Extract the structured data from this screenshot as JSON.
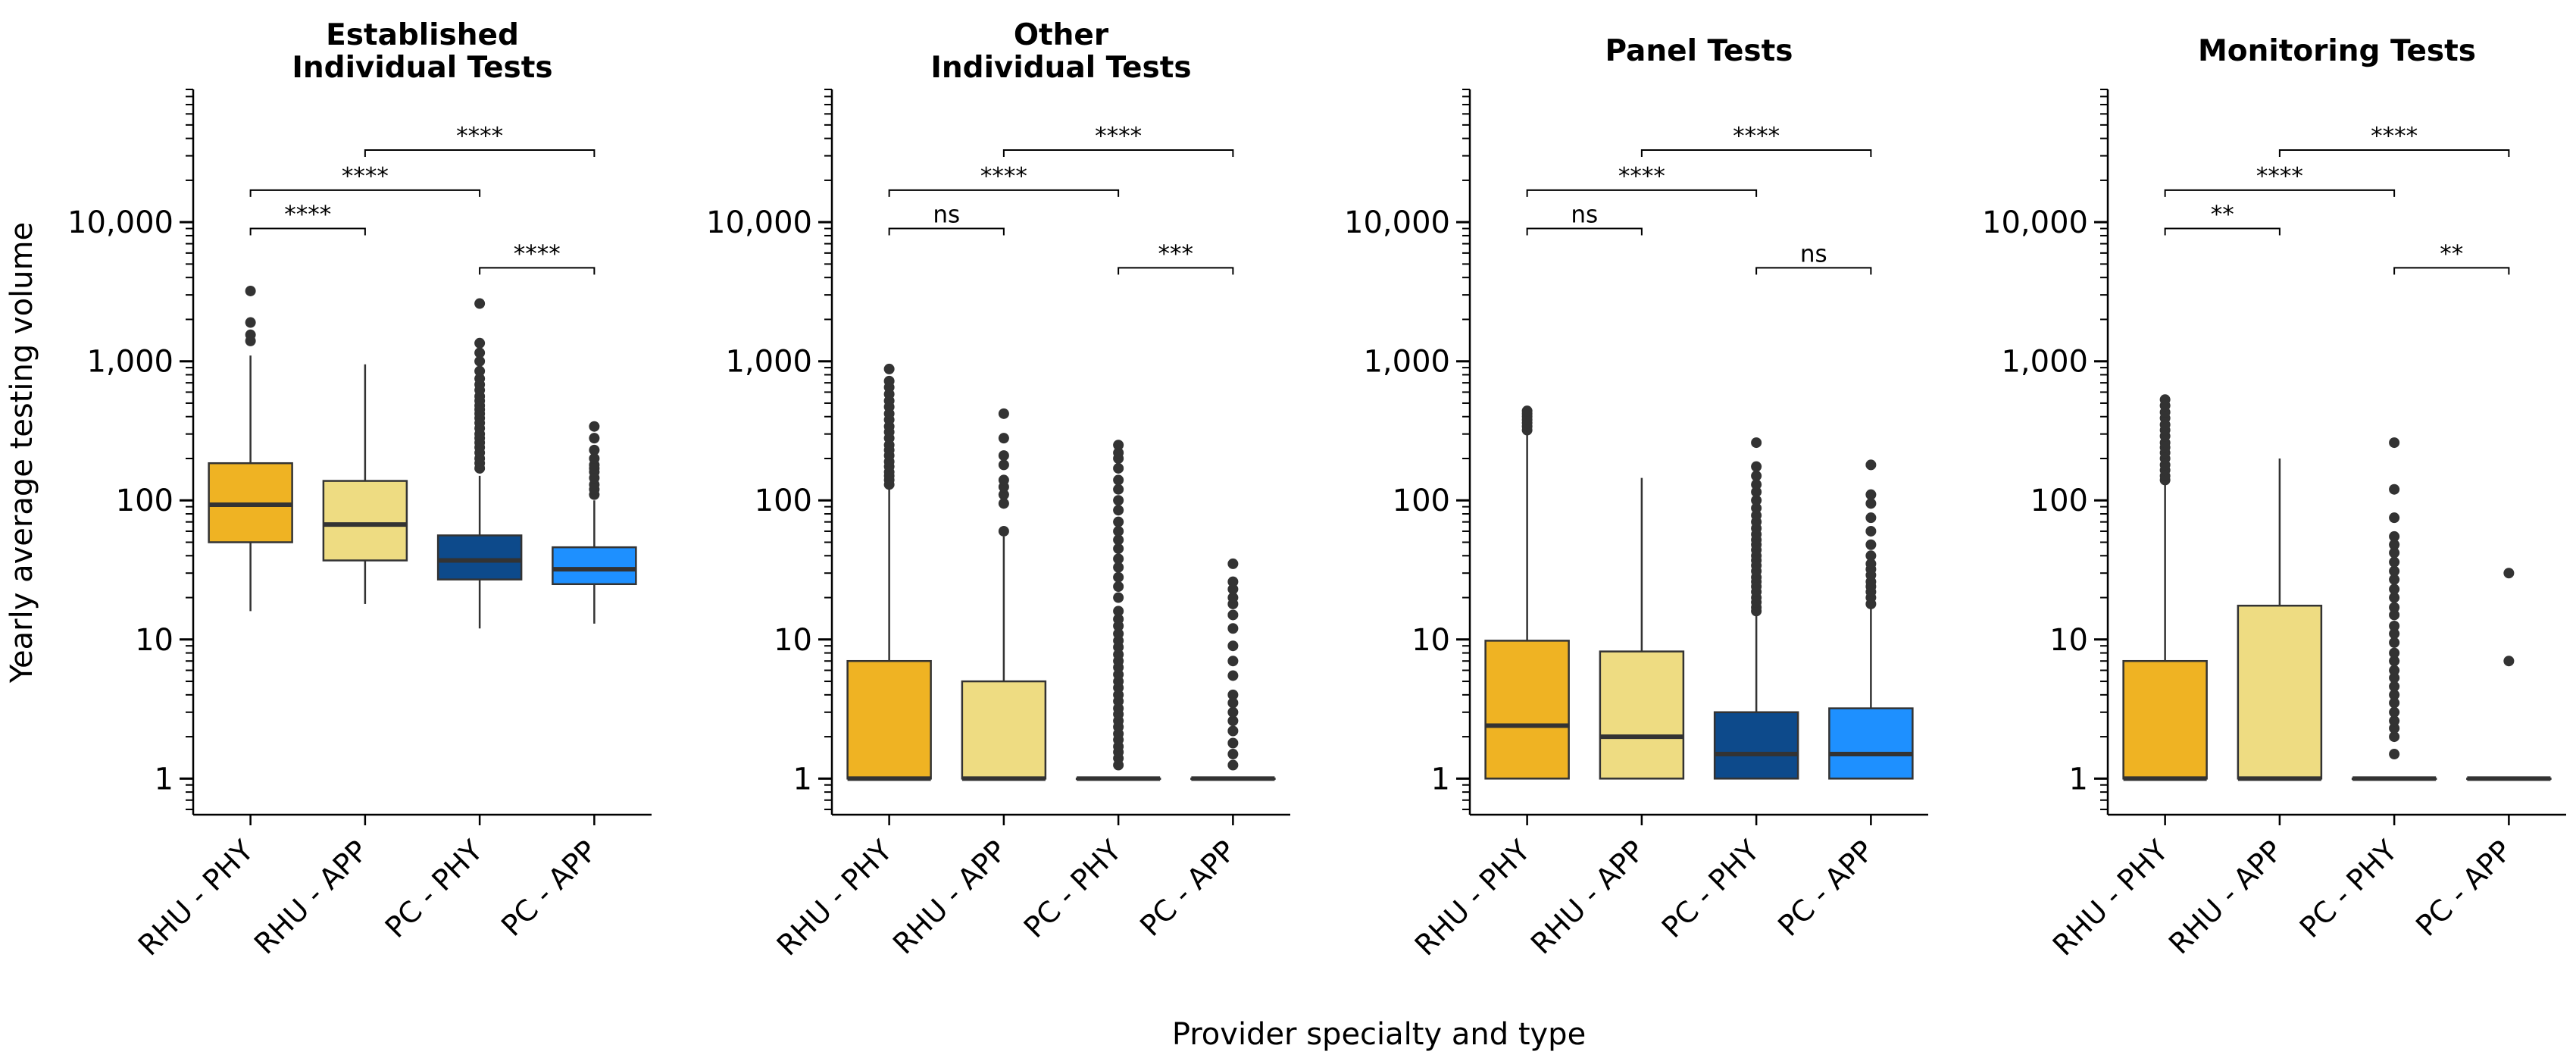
{
  "figure": {
    "ylabel": "Yearly average testing volume",
    "xlabel": "Provider specialty and type"
  },
  "chart_data": [
    {
      "type": "box",
      "title_lines": [
        "Established",
        "Individual Tests"
      ],
      "categories": [
        "RHU - PHY",
        "RHU - APP",
        "PC - PHY",
        "PC - APP"
      ],
      "yscale": "log",
      "ylim": [
        0.55,
        90000
      ],
      "yticks": [
        1,
        10,
        100,
        1000,
        10000
      ],
      "ytick_labels": [
        "1",
        "10",
        "100",
        "1,000",
        "10,000"
      ],
      "colors": [
        "#EFB323",
        "#EEDC82",
        "#0D4A8B",
        "#1E90FF"
      ],
      "boxes": [
        {
          "q1": 50,
          "median": 93,
          "q3": 185,
          "whislo": 16,
          "whishi": 1100,
          "fliers": [
            1400,
            1550,
            1900,
            3200
          ]
        },
        {
          "q1": 37,
          "median": 67,
          "q3": 138,
          "whislo": 18,
          "whishi": 950,
          "fliers": []
        },
        {
          "q1": 27,
          "median": 37,
          "q3": 56,
          "whislo": 12,
          "whishi": 150,
          "fliers": [
            170,
            185,
            200,
            220,
            240,
            260,
            280,
            300,
            330,
            360,
            390,
            420,
            450,
            480,
            520,
            560,
            620,
            680,
            750,
            850,
            1000,
            1150,
            1350,
            2600
          ]
        },
        {
          "q1": 25,
          "median": 32,
          "q3": 46,
          "whislo": 13,
          "whishi": 100,
          "fliers": [
            110,
            120,
            130,
            145,
            160,
            170,
            180,
            200,
            230,
            280,
            340
          ]
        }
      ],
      "comparisons": [
        {
          "from": 0,
          "to": 1,
          "label": "****",
          "y": 9000
        },
        {
          "from": 0,
          "to": 2,
          "label": "****",
          "y": 17000
        },
        {
          "from": 1,
          "to": 3,
          "label": "****",
          "y": 33000
        },
        {
          "from": 2,
          "to": 3,
          "label": "****",
          "y": 4700
        }
      ]
    },
    {
      "type": "box",
      "title_lines": [
        "Other",
        "Individual Tests"
      ],
      "categories": [
        "RHU - PHY",
        "RHU - APP",
        "PC - PHY",
        "PC - APP"
      ],
      "yscale": "log",
      "ylim": [
        0.55,
        90000
      ],
      "yticks": [
        1,
        10,
        100,
        1000,
        10000
      ],
      "ytick_labels": [
        "1",
        "10",
        "100",
        "1,000",
        "10,000"
      ],
      "colors": [
        "#EFB323",
        "#EEDC82",
        "#0D4A8B",
        "#1E90FF"
      ],
      "boxes": [
        {
          "q1": 1,
          "median": 1,
          "q3": 7,
          "whislo": 1,
          "whishi": 125,
          "fliers": [
            130,
            140,
            150,
            160,
            175,
            190,
            210,
            230,
            250,
            280,
            310,
            340,
            380,
            420,
            470,
            520,
            580,
            650,
            720,
            880
          ]
        },
        {
          "q1": 1,
          "median": 1,
          "q3": 5,
          "whislo": 1,
          "whishi": 55,
          "fliers": [
            60,
            95,
            110,
            125,
            140,
            180,
            210,
            280,
            420
          ]
        },
        {
          "q1": 1,
          "median": 1,
          "q3": 1,
          "whislo": 1,
          "whishi": 1,
          "fliers": [
            1.25,
            1.4,
            1.55,
            1.7,
            1.9,
            2.1,
            2.35,
            2.6,
            2.9,
            3.2,
            3.6,
            4.0,
            4.5,
            5.0,
            5.6,
            6.3,
            7.0,
            7.8,
            8.8,
            9.8,
            11,
            12.5,
            14,
            16,
            20,
            24,
            28,
            33,
            38,
            45,
            52,
            60,
            70,
            85,
            100,
            120,
            140,
            170,
            200,
            220,
            250
          ]
        },
        {
          "q1": 1,
          "median": 1,
          "q3": 1,
          "whislo": 1,
          "whishi": 1,
          "fliers": [
            1.25,
            1.5,
            1.8,
            2.2,
            2.6,
            3.0,
            3.5,
            4.0,
            5.5,
            7.0,
            9.0,
            12,
            15,
            18,
            20,
            23,
            26,
            35
          ]
        }
      ],
      "comparisons": [
        {
          "from": 0,
          "to": 1,
          "label": "ns",
          "y": 9000
        },
        {
          "from": 0,
          "to": 2,
          "label": "****",
          "y": 17000
        },
        {
          "from": 1,
          "to": 3,
          "label": "****",
          "y": 33000
        },
        {
          "from": 2,
          "to": 3,
          "label": "***",
          "y": 4700
        }
      ]
    },
    {
      "type": "box",
      "title_lines": [
        "Panel Tests"
      ],
      "categories": [
        "RHU - PHY",
        "RHU - APP",
        "PC - PHY",
        "PC - APP"
      ],
      "yscale": "log",
      "ylim": [
        0.55,
        90000
      ],
      "yticks": [
        1,
        10,
        100,
        1000,
        10000
      ],
      "ytick_labels": [
        "1",
        "10",
        "100",
        "1,000",
        "10,000"
      ],
      "colors": [
        "#EFB323",
        "#EEDC82",
        "#0D4A8B",
        "#1E90FF"
      ],
      "boxes": [
        {
          "q1": 1,
          "median": 2.4,
          "q3": 9.8,
          "whislo": 1,
          "whishi": 300,
          "fliers": [
            320,
            340,
            360,
            380,
            400,
            420,
            440
          ]
        },
        {
          "q1": 1,
          "median": 2.0,
          "q3": 8.2,
          "whislo": 1,
          "whishi": 145,
          "fliers": []
        },
        {
          "q1": 1,
          "median": 1.5,
          "q3": 3.0,
          "whislo": 1,
          "whishi": 15,
          "fliers": [
            16,
            17,
            18.5,
            20,
            22,
            24,
            26,
            28,
            31,
            34,
            37,
            40,
            44,
            48,
            52,
            57,
            63,
            70,
            78,
            88,
            100,
            115,
            130,
            150,
            175,
            260
          ]
        },
        {
          "q1": 1,
          "median": 1.5,
          "q3": 3.2,
          "whislo": 1,
          "whishi": 17,
          "fliers": [
            18,
            20,
            22,
            24,
            26,
            29,
            32,
            35,
            40,
            48,
            60,
            75,
            95,
            110,
            180
          ]
        }
      ],
      "comparisons": [
        {
          "from": 0,
          "to": 1,
          "label": "ns",
          "y": 9000
        },
        {
          "from": 0,
          "to": 2,
          "label": "****",
          "y": 17000
        },
        {
          "from": 1,
          "to": 3,
          "label": "****",
          "y": 33000
        },
        {
          "from": 2,
          "to": 3,
          "label": "ns",
          "y": 4700
        }
      ]
    },
    {
      "type": "box",
      "title_lines": [
        "Monitoring Tests"
      ],
      "categories": [
        "RHU - PHY",
        "RHU - APP",
        "PC - PHY",
        "PC - APP"
      ],
      "yscale": "log",
      "ylim": [
        0.55,
        90000
      ],
      "yticks": [
        1,
        10,
        100,
        1000,
        10000
      ],
      "ytick_labels": [
        "1",
        "10",
        "100",
        "1,000",
        "10,000"
      ],
      "colors": [
        "#EFB323",
        "#EEDC82",
        "#0D4A8B",
        "#1E90FF"
      ],
      "boxes": [
        {
          "q1": 1,
          "median": 1,
          "q3": 7,
          "whislo": 1,
          "whishi": 130,
          "fliers": [
            140,
            150,
            165,
            180,
            200,
            220,
            240,
            260,
            290,
            320,
            350,
            390,
            430,
            480,
            530
          ]
        },
        {
          "q1": 1,
          "median": 1,
          "q3": 17.5,
          "whislo": 1,
          "whishi": 200,
          "fliers": []
        },
        {
          "q1": 1,
          "median": 1,
          "q3": 1,
          "whislo": 1,
          "whishi": 1,
          "fliers": [
            1.5,
            2.0,
            2.3,
            2.6,
            3.0,
            3.5,
            4.0,
            4.6,
            5.3,
            6.0,
            7.0,
            8.0,
            9.5,
            11,
            12.5,
            15,
            17,
            20,
            23,
            27,
            31,
            36,
            42,
            48,
            55,
            75,
            120,
            260
          ]
        },
        {
          "q1": 1,
          "median": 1,
          "q3": 1,
          "whislo": 1,
          "whishi": 1,
          "fliers": [
            7,
            30
          ]
        }
      ],
      "comparisons": [
        {
          "from": 0,
          "to": 1,
          "label": "**",
          "y": 9000
        },
        {
          "from": 0,
          "to": 2,
          "label": "****",
          "y": 17000
        },
        {
          "from": 1,
          "to": 3,
          "label": "****",
          "y": 33000
        },
        {
          "from": 2,
          "to": 3,
          "label": "**",
          "y": 4700
        }
      ]
    }
  ]
}
